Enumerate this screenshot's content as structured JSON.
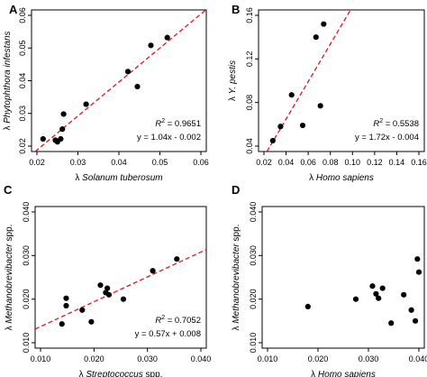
{
  "chart_data": [
    {
      "type": "scatter",
      "panel": "A",
      "xlabel": {
        "prefix": "λ",
        "species": "Solanum tuberosum"
      },
      "ylabel": {
        "prefix": "λ",
        "species": "Phytophthora infestans"
      },
      "xlim": [
        0.02,
        0.06
      ],
      "ylim": [
        0.02,
        0.06
      ],
      "xticks": [
        "0.02",
        "0.03",
        "0.04",
        "0.05",
        "0.06"
      ],
      "yticks": [
        "0.02",
        "0.03",
        "0.04",
        "0.05",
        "0.06"
      ],
      "x": [
        0.0215,
        0.0245,
        0.025,
        0.0258,
        0.0262,
        0.0265,
        0.032,
        0.0422,
        0.0445,
        0.0478,
        0.0518
      ],
      "y": [
        0.0222,
        0.0218,
        0.0213,
        0.0222,
        0.0252,
        0.0298,
        0.0328,
        0.0428,
        0.0382,
        0.0508,
        0.0532
      ],
      "fit": {
        "slope": 1.04,
        "intercept": -0.002
      },
      "r2_value": "0.9651",
      "equation": "y = 1.04x - 0.002"
    },
    {
      "type": "scatter",
      "panel": "B",
      "xlabel": {
        "prefix": "λ",
        "species": "Homo sapiens"
      },
      "ylabel": {
        "prefix": "λ",
        "species": "Y. pestis"
      },
      "xlim": [
        0.02,
        0.16
      ],
      "ylim": [
        0.04,
        0.16
      ],
      "xticks": [
        "0.02",
        "0.04",
        "0.06",
        "0.08",
        "0.10",
        "0.12",
        "0.14",
        "0.16"
      ],
      "yticks": [
        "0.04",
        "0.08",
        "0.12",
        "0.16"
      ],
      "x": [
        0.028,
        0.035,
        0.045,
        0.055,
        0.067,
        0.071,
        0.074
      ],
      "y": [
        0.045,
        0.058,
        0.087,
        0.059,
        0.14,
        0.077,
        0.152
      ],
      "fit": {
        "slope": 1.72,
        "intercept": -0.004
      },
      "r2_value": "0.5538",
      "equation": "y = 1.72x - 0.004"
    },
    {
      "type": "scatter",
      "panel": "C",
      "xlabel": {
        "prefix": "λ",
        "species": "Streptococcus",
        "suffix": "spp."
      },
      "ylabel": {
        "prefix": "λ",
        "species": "Methanobrevibacter",
        "suffix": "spp."
      },
      "xlim": [
        0.01,
        0.04
      ],
      "ylim": [
        0.01,
        0.04
      ],
      "xticks": [
        "0.010",
        "0.020",
        "0.030",
        "0.040"
      ],
      "yticks": [
        "0.010",
        "0.020",
        "0.030",
        "0.040"
      ],
      "x": [
        0.014,
        0.0148,
        0.0148,
        0.0178,
        0.0195,
        0.0212,
        0.0222,
        0.0225,
        0.0228,
        0.0255,
        0.031,
        0.0355
      ],
      "y": [
        0.0143,
        0.0202,
        0.0185,
        0.0175,
        0.0148,
        0.0232,
        0.0215,
        0.0225,
        0.021,
        0.02,
        0.0265,
        0.0292
      ],
      "fit": {
        "slope": 0.57,
        "intercept": 0.008
      },
      "r2_value": "0.7052",
      "equation": "y = 0.57x + 0.008"
    },
    {
      "type": "scatter",
      "panel": "D",
      "xlabel": {
        "prefix": "λ",
        "species": "Homo sapiens"
      },
      "ylabel": {
        "prefix": "λ",
        "species": "Methanobrevibacter",
        "suffix": "spp."
      },
      "xlim": [
        0.01,
        0.04
      ],
      "ylim": [
        0.01,
        0.04
      ],
      "xticks": [
        "0.010",
        "0.020",
        "0.030",
        "0.040"
      ],
      "yticks": [
        "0.010",
        "0.020",
        "0.030",
        "0.040"
      ],
      "x": [
        0.018,
        0.0275,
        0.0308,
        0.0315,
        0.032,
        0.0328,
        0.0345,
        0.037,
        0.0385,
        0.0393,
        0.0397,
        0.04
      ],
      "y": [
        0.0183,
        0.02,
        0.023,
        0.0212,
        0.0202,
        0.0225,
        0.0145,
        0.021,
        0.0175,
        0.015,
        0.0292,
        0.0262
      ],
      "fit": null
    }
  ],
  "r2_label": "R",
  "r2_exponent": "2",
  "fit_color": "#e0141b"
}
